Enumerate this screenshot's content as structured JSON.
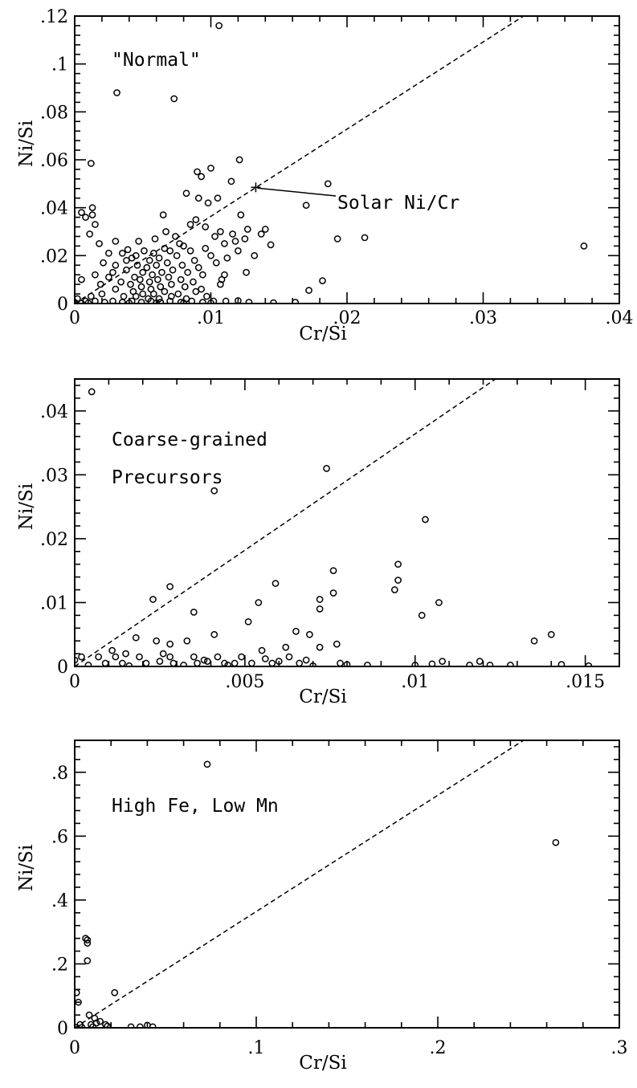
{
  "chart_data": [
    {
      "type": "scatter",
      "title": "",
      "annotations": [
        "\"Normal\""
      ],
      "xlabel": "Cr/Si",
      "ylabel": "Ni/Si",
      "xlim": [
        0,
        0.04
      ],
      "ylim": [
        0,
        0.12
      ],
      "xticks": [
        0,
        0.01,
        0.02,
        0.03,
        0.04
      ],
      "xticklabels": [
        "0",
        ".01",
        ".02",
        ".03",
        ".04"
      ],
      "yticks": [
        0,
        0.02,
        0.04,
        0.06,
        0.08,
        0.1,
        0.12
      ],
      "yticklabels": [
        "0",
        ".02",
        ".04",
        ".06",
        ".08",
        ".1",
        ".12"
      ],
      "reference_line": {
        "style": "dashed",
        "slope": 3.64
      },
      "callout": {
        "text": "Solar Ni/Cr",
        "x": 0.0133,
        "y": 0.0485
      },
      "points": [
        [
          0.0106,
          0.116
        ],
        [
          0.0031,
          0.088
        ],
        [
          0.0073,
          0.0855
        ],
        [
          0.0121,
          0.06
        ],
        [
          0.0012,
          0.0585
        ],
        [
          0.01,
          0.0565
        ],
        [
          0.009,
          0.055
        ],
        [
          0.0093,
          0.053
        ],
        [
          0.0115,
          0.051
        ],
        [
          0.0186,
          0.05
        ],
        [
          0.0082,
          0.046
        ],
        [
          0.0105,
          0.044
        ],
        [
          0.0091,
          0.044
        ],
        [
          0.0098,
          0.042
        ],
        [
          0.0013,
          0.04
        ],
        [
          0.017,
          0.041
        ],
        [
          0.0005,
          0.038
        ],
        [
          0.0013,
          0.037
        ],
        [
          0.0065,
          0.037
        ],
        [
          0.0008,
          0.036
        ],
        [
          0.0122,
          0.037
        ],
        [
          0.0085,
          0.033
        ],
        [
          0.0015,
          0.033
        ],
        [
          0.0127,
          0.031
        ],
        [
          0.014,
          0.031
        ],
        [
          0.0137,
          0.029
        ],
        [
          0.0011,
          0.029
        ],
        [
          0.0193,
          0.027
        ],
        [
          0.0213,
          0.0275
        ],
        [
          0.0125,
          0.027
        ],
        [
          0.0107,
          0.03
        ],
        [
          0.0116,
          0.029
        ],
        [
          0.0047,
          0.026
        ],
        [
          0.003,
          0.026
        ],
        [
          0.0018,
          0.025
        ],
        [
          0.0144,
          0.0245
        ],
        [
          0.0077,
          0.025
        ],
        [
          0.008,
          0.024
        ],
        [
          0.0374,
          0.024
        ],
        [
          0.0039,
          0.0225
        ],
        [
          0.0066,
          0.023
        ],
        [
          0.0051,
          0.022
        ],
        [
          0.0025,
          0.021
        ],
        [
          0.0035,
          0.021
        ],
        [
          0.0045,
          0.02
        ],
        [
          0.0058,
          0.021
        ],
        [
          0.007,
          0.022
        ],
        [
          0.0085,
          0.022
        ],
        [
          0.0096,
          0.023
        ],
        [
          0.0042,
          0.019
        ],
        [
          0.0055,
          0.018
        ],
        [
          0.0062,
          0.019
        ],
        [
          0.0075,
          0.02
        ],
        [
          0.0088,
          0.018
        ],
        [
          0.01,
          0.02
        ],
        [
          0.0112,
          0.019
        ],
        [
          0.012,
          0.022
        ],
        [
          0.0132,
          0.02
        ],
        [
          0.0046,
          0.016
        ],
        [
          0.0053,
          0.015
        ],
        [
          0.006,
          0.016
        ],
        [
          0.0068,
          0.017
        ],
        [
          0.0079,
          0.016
        ],
        [
          0.0091,
          0.015
        ],
        [
          0.0104,
          0.017
        ],
        [
          0.0021,
          0.017
        ],
        [
          0.003,
          0.016
        ],
        [
          0.0038,
          0.014
        ],
        [
          0.005,
          0.013
        ],
        [
          0.0057,
          0.012
        ],
        [
          0.0064,
          0.013
        ],
        [
          0.0072,
          0.014
        ],
        [
          0.0083,
          0.013
        ],
        [
          0.0094,
          0.012
        ],
        [
          0.011,
          0.012
        ],
        [
          0.0126,
          0.013
        ],
        [
          0.0015,
          0.012
        ],
        [
          0.0025,
          0.011
        ],
        [
          0.0044,
          0.011
        ],
        [
          0.0048,
          0.01
        ],
        [
          0.0055,
          0.009
        ],
        [
          0.0061,
          0.01
        ],
        [
          0.0069,
          0.011
        ],
        [
          0.0078,
          0.01
        ],
        [
          0.0087,
          0.009
        ],
        [
          0.0108,
          0.01
        ],
        [
          0.0005,
          0.01
        ],
        [
          0.0034,
          0.009
        ],
        [
          0.0041,
          0.008
        ],
        [
          0.0049,
          0.007
        ],
        [
          0.0056,
          0.006
        ],
        [
          0.0063,
          0.007
        ],
        [
          0.0071,
          0.008
        ],
        [
          0.0081,
          0.007
        ],
        [
          0.0093,
          0.006
        ],
        [
          0.0107,
          0.008
        ],
        [
          0.0182,
          0.0095
        ],
        [
          0.003,
          0.006
        ],
        [
          0.0043,
          0.005
        ],
        [
          0.005,
          0.004
        ],
        [
          0.0058,
          0.004
        ],
        [
          0.0066,
          0.005
        ],
        [
          0.0076,
          0.004
        ],
        [
          0.0089,
          0.005
        ],
        [
          0.0172,
          0.0055
        ],
        [
          0.002,
          0.004
        ],
        [
          0.0012,
          0.003
        ],
        [
          0.0036,
          0.003
        ],
        [
          0.0045,
          0.003
        ],
        [
          0.0054,
          0.002
        ],
        [
          0.0062,
          0.002
        ],
        [
          0.0071,
          0.003
        ],
        [
          0.0082,
          0.002
        ],
        [
          0.0097,
          0.003
        ],
        [
          0.0002,
          0.002
        ],
        [
          0.0008,
          0.001
        ],
        [
          0.0015,
          0.001
        ],
        [
          0.0022,
          0.0005
        ],
        [
          0.0028,
          0.001
        ],
        [
          0.0035,
          0.0005
        ],
        [
          0.0042,
          0.001
        ],
        [
          0.0049,
          0.0005
        ],
        [
          0.0056,
          0.001
        ],
        [
          0.0063,
          0.0005
        ],
        [
          0.007,
          0.001
        ],
        [
          0.0078,
          0.0005
        ],
        [
          0.0086,
          0.001
        ],
        [
          0.0094,
          0.0005
        ],
        [
          0.0102,
          0.001
        ],
        [
          0.0111,
          0.001
        ],
        [
          0.012,
          0.0012
        ],
        [
          0.0128,
          0.0005
        ],
        [
          0.0146,
          0.0003
        ],
        [
          0.0162,
          0.0005
        ],
        [
          0.0,
          0.0005
        ],
        [
          0.0005,
          0.0001
        ],
        [
          0.001,
          0.0002
        ],
        [
          0.004,
          0.0002
        ],
        [
          0.006,
          0.0002
        ],
        [
          0.008,
          0.0002
        ],
        [
          0.01,
          0.0002
        ],
        [
          0.0089,
          0.035
        ],
        [
          0.0096,
          0.032
        ],
        [
          0.0103,
          0.028
        ],
        [
          0.011,
          0.025
        ],
        [
          0.0118,
          0.026
        ],
        [
          0.0074,
          0.028
        ],
        [
          0.0067,
          0.03
        ],
        [
          0.0059,
          0.027
        ],
        [
          0.0038,
          0.018
        ],
        [
          0.0028,
          0.013
        ],
        [
          0.0019,
          0.008
        ]
      ]
    },
    {
      "type": "scatter",
      "title": "",
      "annotations": [
        "Coarse-grained",
        "Precursors"
      ],
      "xlabel": "Cr/Si",
      "ylabel": "Ni/Si",
      "xlim": [
        0,
        0.016
      ],
      "ylim": [
        0,
        0.045
      ],
      "xticks": [
        0,
        0.005,
        0.01,
        0.015
      ],
      "xticklabels": [
        "0",
        ".005",
        ".01",
        ".015"
      ],
      "yticks": [
        0,
        0.01,
        0.02,
        0.03,
        0.04
      ],
      "yticklabels": [
        "0",
        ".01",
        ".02",
        ".03",
        ".04"
      ],
      "reference_line": {
        "style": "dashed",
        "slope": 3.64
      },
      "points": [
        [
          0.0005,
          0.043
        ],
        [
          0.0074,
          0.031
        ],
        [
          0.0041,
          0.0275
        ],
        [
          0.0103,
          0.023
        ],
        [
          0.0095,
          0.016
        ],
        [
          0.0076,
          0.015
        ],
        [
          0.0095,
          0.0135
        ],
        [
          0.0059,
          0.013
        ],
        [
          0.0028,
          0.0125
        ],
        [
          0.0094,
          0.012
        ],
        [
          0.0076,
          0.0115
        ],
        [
          0.0072,
          0.0105
        ],
        [
          0.0023,
          0.0105
        ],
        [
          0.0054,
          0.01
        ],
        [
          0.0107,
          0.01
        ],
        [
          0.0102,
          0.008
        ],
        [
          0.0035,
          0.0085
        ],
        [
          0.0072,
          0.009
        ],
        [
          0.0065,
          0.0055
        ],
        [
          0.0069,
          0.005
        ],
        [
          0.0041,
          0.005
        ],
        [
          0.0051,
          0.007
        ],
        [
          0.014,
          0.005
        ],
        [
          0.0135,
          0.004
        ],
        [
          0.0024,
          0.004
        ],
        [
          0.0028,
          0.0035
        ],
        [
          0.0033,
          0.004
        ],
        [
          0.0077,
          0.0035
        ],
        [
          0.0072,
          0.003
        ],
        [
          0.0062,
          0.003
        ],
        [
          0.0018,
          0.0045
        ],
        [
          0.0011,
          0.0025
        ],
        [
          0.0015,
          0.002
        ],
        [
          0.0002,
          0.0015
        ],
        [
          0.0007,
          0.0015
        ],
        [
          0.0012,
          0.0015
        ],
        [
          0.0019,
          0.0015
        ],
        [
          0.0028,
          0.0015
        ],
        [
          0.0035,
          0.0015
        ],
        [
          0.0042,
          0.0015
        ],
        [
          0.0049,
          0.0015
        ],
        [
          0.0055,
          0.0025
        ],
        [
          0.0063,
          0.0015
        ],
        [
          0.0068,
          0.001
        ],
        [
          0.0009,
          0.0005
        ],
        [
          0.0014,
          0.0005
        ],
        [
          0.0021,
          0.0005
        ],
        [
          0.0029,
          0.0005
        ],
        [
          0.0036,
          0.0005
        ],
        [
          0.0044,
          0.0005
        ],
        [
          0.0047,
          0.0005
        ],
        [
          0.0052,
          0.0005
        ],
        [
          0.0058,
          0.0005
        ],
        [
          0.0066,
          0.0005
        ],
        [
          0.0078,
          0.0005
        ],
        [
          0.0086,
          0.0002
        ],
        [
          0.01,
          0.0002
        ],
        [
          0.0108,
          0.0008
        ],
        [
          0.0119,
          0.0008
        ],
        [
          0.0122,
          0.0002
        ],
        [
          0.0128,
          0.0002
        ],
        [
          0.0143,
          0.0003
        ],
        [
          0.0151,
          0.0001
        ],
        [
          0.0,
          0.001
        ],
        [
          0.0004,
          0.0002
        ],
        [
          0.0016,
          0.0001
        ],
        [
          0.0025,
          0.0008
        ],
        [
          0.0032,
          0.0002
        ],
        [
          0.0039,
          0.0008
        ],
        [
          0.0045,
          0.0002
        ],
        [
          0.006,
          0.0008
        ],
        [
          0.007,
          0.0001
        ],
        [
          0.008,
          0.0003
        ],
        [
          0.0105,
          0.0004
        ],
        [
          0.0116,
          0.0002
        ],
        [
          0.0026,
          0.002
        ],
        [
          0.0038,
          0.001
        ],
        [
          0.0056,
          0.0012
        ]
      ]
    },
    {
      "type": "scatter",
      "title": "",
      "annotations": [
        "High Fe, Low Mn"
      ],
      "xlabel": "Cr/Si",
      "ylabel": "Ni/Si",
      "xlim": [
        0,
        0.3
      ],
      "ylim": [
        0,
        0.9
      ],
      "xticks": [
        0,
        0.1,
        0.2,
        0.3
      ],
      "xticklabels": [
        "0",
        ".1",
        ".2",
        ".3"
      ],
      "yticks": [
        0,
        0.2,
        0.4,
        0.6,
        0.8
      ],
      "yticklabels": [
        "0",
        ".2",
        ".4",
        ".6",
        ".8"
      ],
      "reference_line": {
        "style": "dashed",
        "slope": 3.64
      },
      "points": [
        [
          0.073,
          0.825
        ],
        [
          0.265,
          0.58
        ],
        [
          0.006,
          0.28
        ],
        [
          0.007,
          0.275
        ],
        [
          0.007,
          0.265
        ],
        [
          0.007,
          0.21
        ],
        [
          0.022,
          0.11
        ],
        [
          0.001,
          0.11
        ],
        [
          0.002,
          0.08
        ],
        [
          0.008,
          0.04
        ],
        [
          0.011,
          0.03
        ],
        [
          0.014,
          0.02
        ],
        [
          0.017,
          0.01
        ],
        [
          0.009,
          0.01
        ],
        [
          0.003,
          0.01
        ],
        [
          0.012,
          0.015
        ],
        [
          0.018,
          0.005
        ],
        [
          0.031,
          0.003
        ],
        [
          0.036,
          0.003
        ],
        [
          0.04,
          0.008
        ],
        [
          0.043,
          0.003
        ],
        [
          0.001,
          0.001
        ],
        [
          0.004,
          0.001
        ],
        [
          0.01,
          0.003
        ]
      ]
    }
  ]
}
